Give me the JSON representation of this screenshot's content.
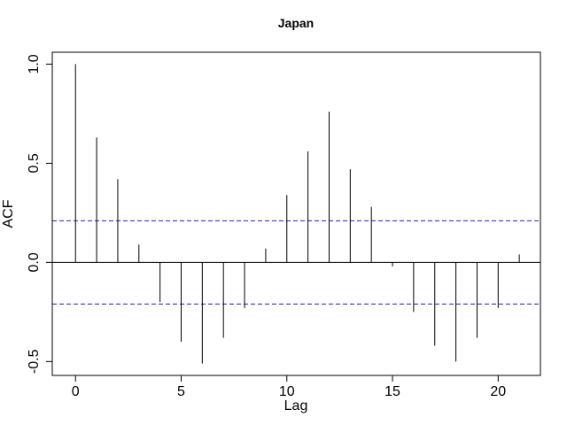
{
  "chart_data": {
    "type": "bar",
    "title": "Japan",
    "xlabel": "Lag",
    "ylabel": "ACF",
    "x": [
      0,
      1,
      2,
      3,
      4,
      5,
      6,
      7,
      8,
      9,
      10,
      11,
      12,
      13,
      14,
      15,
      16,
      17,
      18,
      19,
      20,
      21
    ],
    "values": [
      1.0,
      0.63,
      0.42,
      0.09,
      -0.2,
      -0.4,
      -0.51,
      -0.38,
      -0.23,
      0.07,
      0.34,
      0.56,
      0.76,
      0.47,
      0.28,
      -0.02,
      -0.25,
      -0.42,
      -0.5,
      -0.38,
      -0.23,
      0.04
    ],
    "xlim": [
      -1.1,
      22
    ],
    "ylim": [
      -0.57,
      1.06
    ],
    "xticks": [
      0,
      5,
      10,
      15,
      20
    ],
    "yticks": [
      -0.5,
      0.0,
      0.5,
      1.0
    ],
    "ytick_labels": [
      "-0.5",
      "0.0",
      "0.5",
      "1.0"
    ],
    "confidence_bound": 0.21,
    "colors": {
      "bars": "#000000",
      "bounds": "#1f1fc8",
      "zero_line": "#000000"
    }
  }
}
